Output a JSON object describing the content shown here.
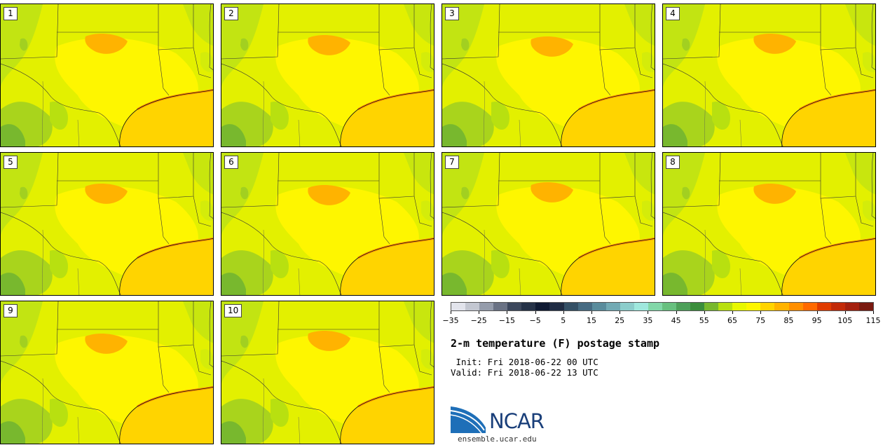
{
  "members": [
    {
      "label": "1"
    },
    {
      "label": "2"
    },
    {
      "label": "3"
    },
    {
      "label": "4"
    },
    {
      "label": "5"
    },
    {
      "label": "6"
    },
    {
      "label": "7"
    },
    {
      "label": "8"
    },
    {
      "label": "9"
    },
    {
      "label": "10"
    }
  ],
  "colorbar": {
    "colors": [
      "#e2e4ec",
      "#c3c7d1",
      "#959cab",
      "#6a7284",
      "#3c475c",
      "#253248",
      "#0f1a33",
      "#1f2c44",
      "#345066",
      "#466b82",
      "#5a8c9c",
      "#72aab4",
      "#8ccdcb",
      "#9fe8dd",
      "#82d7a8",
      "#68c07f",
      "#4ea05a",
      "#3b8e3c",
      "#78b82e",
      "#b8e010",
      "#e8f800",
      "#fef600",
      "#ffd400",
      "#ffb300",
      "#ff8f00",
      "#ff6a00",
      "#e03c00",
      "#c22a08",
      "#a4200e",
      "#7a1a10"
    ],
    "min": -35,
    "max": 115,
    "ticks": [
      "−35",
      "−25",
      "−15",
      "−5",
      "5",
      "15",
      "25",
      "35",
      "45",
      "55",
      "65",
      "75",
      "85",
      "95",
      "105",
      "115"
    ],
    "tick_values": [
      -35,
      -25,
      -15,
      -5,
      5,
      15,
      25,
      35,
      45,
      55,
      65,
      75,
      85,
      95,
      105,
      115
    ]
  },
  "title": "2-m temperature (F) postage stamp",
  "init": " Init: Fri 2018-06-22 00 UTC",
  "valid": "Valid: Fri 2018-06-22 13 UTC",
  "logo": {
    "text": "NCAR",
    "colors": [
      "#1e6fb8",
      "#1a3f7a"
    ]
  },
  "website": "ensemble.ucar.edu"
}
